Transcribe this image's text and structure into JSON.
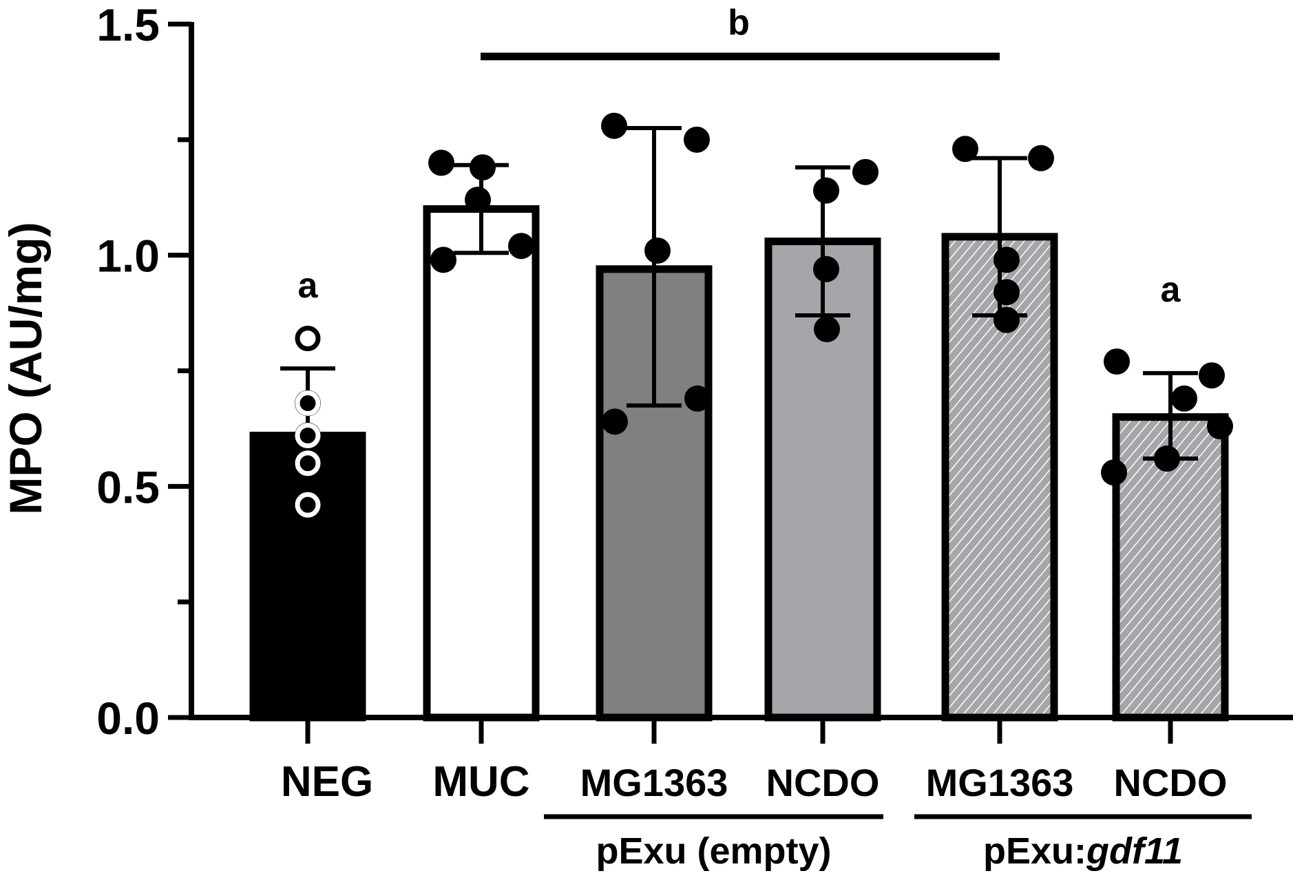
{
  "chart_data": {
    "type": "bar",
    "ylabel": "MPO (AU/mg)",
    "ylim": [
      0,
      1.5
    ],
    "yticks": [
      "0.0",
      "0.5",
      "1.0",
      "1.5"
    ],
    "categories": [
      "NEG",
      "MUC",
      "MG1363",
      "NCDO",
      "MG1363",
      "NCDO"
    ],
    "groups": [
      {
        "label": "pExu (empty)",
        "label_main": "pExu (empty)",
        "label_italic": "",
        "members": [
          2,
          3
        ]
      },
      {
        "label": "pExu:gdf11",
        "label_main": "pExu:",
        "label_italic": "gdf11",
        "members": [
          4,
          5
        ]
      }
    ],
    "bars": [
      {
        "category": "NEG",
        "value": 0.61,
        "sd_upper": 0.755,
        "sd_lower": 0.61,
        "fill": "#000000",
        "pattern": "solid",
        "points": [
          0.82,
          0.68,
          0.61,
          0.55,
          0.46
        ],
        "point_style": "open"
      },
      {
        "category": "MUC",
        "value": 1.1,
        "sd_upper": 1.195,
        "sd_lower": 1.005,
        "fill": "#ffffff",
        "pattern": "solid",
        "points": [
          1.2,
          1.19,
          1.12,
          1.02,
          0.99
        ],
        "point_style": "filled"
      },
      {
        "category": "MG1363",
        "value": 0.97,
        "sd_upper": 1.275,
        "sd_lower": 0.675,
        "fill": "#808080",
        "pattern": "solid",
        "points": [
          1.28,
          1.25,
          1.01,
          0.69,
          0.64
        ],
        "point_style": "filled"
      },
      {
        "category": "NCDO",
        "value": 1.03,
        "sd_upper": 1.19,
        "sd_lower": 0.87,
        "fill": "#a6a6aa",
        "pattern": "solid",
        "points": [
          1.18,
          1.14,
          0.97,
          0.84
        ],
        "point_style": "filled"
      },
      {
        "category": "MG1363",
        "value": 1.04,
        "sd_upper": 1.21,
        "sd_lower": 0.87,
        "fill": "#a6a6aa",
        "pattern": "hatched",
        "points": [
          1.23,
          1.21,
          0.99,
          0.92,
          0.86
        ],
        "point_style": "filled"
      },
      {
        "category": "NCDO",
        "value": 0.65,
        "sd_upper": 0.745,
        "sd_lower": 0.56,
        "fill": "#a6a6aa",
        "pattern": "hatched",
        "points": [
          0.77,
          0.74,
          0.69,
          0.63,
          0.56,
          0.53
        ],
        "point_style": "filled"
      }
    ],
    "significance": [
      {
        "letter": "a",
        "bars": [
          0
        ]
      },
      {
        "letter": "b",
        "bars": [
          1,
          4
        ]
      },
      {
        "letter": "a",
        "bars": [
          5
        ]
      }
    ],
    "colors": {
      "axis": "#000000",
      "hatch_bg": "#a6a6aa",
      "hatch_line": "#ffffff"
    }
  }
}
